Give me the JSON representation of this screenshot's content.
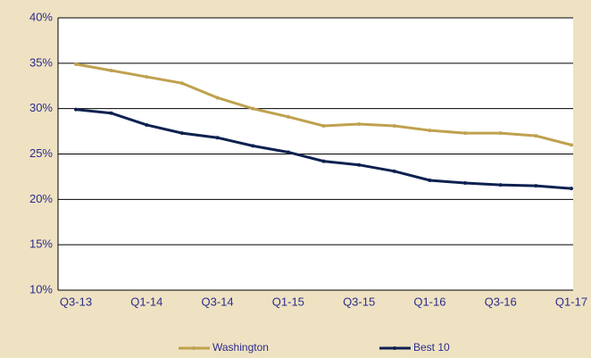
{
  "chart_data": {
    "type": "line",
    "categories": [
      "Q3-13",
      null,
      "Q1-14",
      null,
      "Q3-14",
      null,
      "Q1-15",
      null,
      "Q3-15",
      null,
      "Q1-16",
      null,
      "Q3-16",
      null,
      "Q1-17"
    ],
    "series": [
      {
        "name": "Washington",
        "color": "#bfa14e",
        "values": [
          34.9,
          34.2,
          33.5,
          32.8,
          31.2,
          30.0,
          29.1,
          28.1,
          28.3,
          28.1,
          27.6,
          27.3,
          27.3,
          27.0,
          26.0
        ]
      },
      {
        "name": "Best 10",
        "color": "#0d2150",
        "values": [
          29.9,
          29.5,
          28.2,
          27.3,
          26.8,
          25.9,
          25.2,
          24.2,
          23.8,
          23.1,
          22.1,
          21.8,
          21.6,
          21.5,
          21.2
        ]
      }
    ],
    "ylim": [
      10,
      40
    ],
    "yticks": [
      {
        "value": 10,
        "label": "10%"
      },
      {
        "value": 15,
        "label": "15%"
      },
      {
        "value": 20,
        "label": "20%"
      },
      {
        "value": 25,
        "label": "25%"
      },
      {
        "value": 30,
        "label": "30%"
      },
      {
        "value": 35,
        "label": "35%"
      },
      {
        "value": 40,
        "label": "40%"
      }
    ],
    "grid": true,
    "legend": "bottom"
  }
}
